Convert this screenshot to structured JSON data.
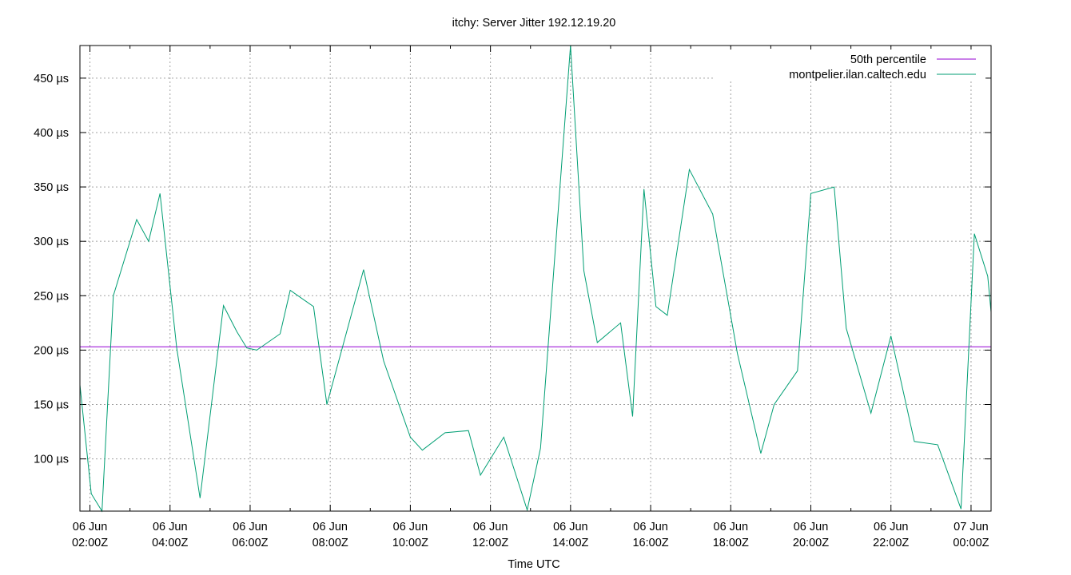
{
  "chart_data": {
    "type": "line",
    "title": "itchy: Server Jitter 192.12.19.20",
    "xlabel": "Time UTC",
    "ylabel": "",
    "y_unit": "µs",
    "ylim": [
      52,
      480
    ],
    "y_ticks": [
      100,
      150,
      200,
      250,
      300,
      350,
      400,
      450
    ],
    "y_tick_labels": [
      "100 µs",
      "150 µs",
      "200 µs",
      "250 µs",
      "300 µs",
      "350 µs",
      "400 µs",
      "450 µs"
    ],
    "xlim": [
      "2024-06-06T01:45:00Z",
      "2024-06-07T00:30:00Z"
    ],
    "x_ticks": [
      "2024-06-06T02:00:00Z",
      "2024-06-06T04:00:00Z",
      "2024-06-06T06:00:00Z",
      "2024-06-06T08:00:00Z",
      "2024-06-06T10:00:00Z",
      "2024-06-06T12:00:00Z",
      "2024-06-06T14:00:00Z",
      "2024-06-06T16:00:00Z",
      "2024-06-06T18:00:00Z",
      "2024-06-06T20:00:00Z",
      "2024-06-06T22:00:00Z",
      "2024-06-07T00:00:00Z"
    ],
    "x_tick_labels": [
      [
        "06 Jun",
        "02:00Z"
      ],
      [
        "06 Jun",
        "04:00Z"
      ],
      [
        "06 Jun",
        "06:00Z"
      ],
      [
        "06 Jun",
        "08:00Z"
      ],
      [
        "06 Jun",
        "10:00Z"
      ],
      [
        "06 Jun",
        "12:00Z"
      ],
      [
        "06 Jun",
        "14:00Z"
      ],
      [
        "06 Jun",
        "16:00Z"
      ],
      [
        "06 Jun",
        "18:00Z"
      ],
      [
        "06 Jun",
        "20:00Z"
      ],
      [
        "06 Jun",
        "22:00Z"
      ],
      [
        "07 Jun",
        "00:00Z"
      ]
    ],
    "grid": true,
    "legend_position": "top-right",
    "series": [
      {
        "name": "50th percentile",
        "color": "#9400d3",
        "x": [
          "2024-06-06T01:45:00Z",
          "2024-06-07T00:30:00Z"
        ],
        "y": [
          203,
          203
        ]
      },
      {
        "name": "montpelier.ilan.caltech.edu",
        "color": "#009e73",
        "x": [
          "2024-06-06T01:45:00Z",
          "2024-06-06T02:02:00Z",
          "2024-06-06T02:18:00Z",
          "2024-06-06T02:35:00Z",
          "2024-06-06T03:10:00Z",
          "2024-06-06T03:28:00Z",
          "2024-06-06T03:45:00Z",
          "2024-06-06T04:10:00Z",
          "2024-06-06T04:45:00Z",
          "2024-06-06T05:20:00Z",
          "2024-06-06T05:40:00Z",
          "2024-06-06T05:55:00Z",
          "2024-06-06T06:10:00Z",
          "2024-06-06T06:45:00Z",
          "2024-06-06T07:00:00Z",
          "2024-06-06T07:35:00Z",
          "2024-06-06T07:55:00Z",
          "2024-06-06T08:50:00Z",
          "2024-06-06T09:20:00Z",
          "2024-06-06T10:00:00Z",
          "2024-06-06T10:18:00Z",
          "2024-06-06T10:52:00Z",
          "2024-06-06T11:27:00Z",
          "2024-06-06T11:45:00Z",
          "2024-06-06T12:20:00Z",
          "2024-06-06T12:55:00Z",
          "2024-06-06T13:15:00Z",
          "2024-06-06T14:00:00Z",
          "2024-06-06T14:20:00Z",
          "2024-06-06T14:40:00Z",
          "2024-06-06T15:15:00Z",
          "2024-06-06T15:33:00Z",
          "2024-06-06T15:50:00Z",
          "2024-06-06T16:08:00Z",
          "2024-06-06T16:25:00Z",
          "2024-06-06T16:58:00Z",
          "2024-06-06T17:33:00Z",
          "2024-06-06T18:10:00Z",
          "2024-06-06T18:45:00Z",
          "2024-06-06T19:05:00Z",
          "2024-06-06T19:40:00Z",
          "2024-06-06T20:00:00Z",
          "2024-06-06T20:35:00Z",
          "2024-06-06T20:53:00Z",
          "2024-06-06T21:30:00Z",
          "2024-06-06T22:00:00Z",
          "2024-06-06T22:35:00Z",
          "2024-06-06T23:10:00Z",
          "2024-06-06T23:45:00Z",
          "2024-06-07T00:05:00Z",
          "2024-06-07T00:25:00Z",
          "2024-06-07T00:30:00Z"
        ],
        "y": [
          168,
          68,
          52,
          250,
          320,
          300,
          344,
          202,
          64,
          241,
          217,
          202,
          200,
          215,
          255,
          240,
          150,
          274,
          190,
          120,
          108,
          124,
          126,
          85,
          120,
          53,
          110,
          480,
          273,
          207,
          225,
          139,
          348,
          240,
          232,
          366,
          325,
          197,
          105,
          150,
          181,
          344,
          350,
          220,
          142,
          213,
          116,
          113,
          54,
          307,
          268,
          235
        ]
      }
    ]
  }
}
